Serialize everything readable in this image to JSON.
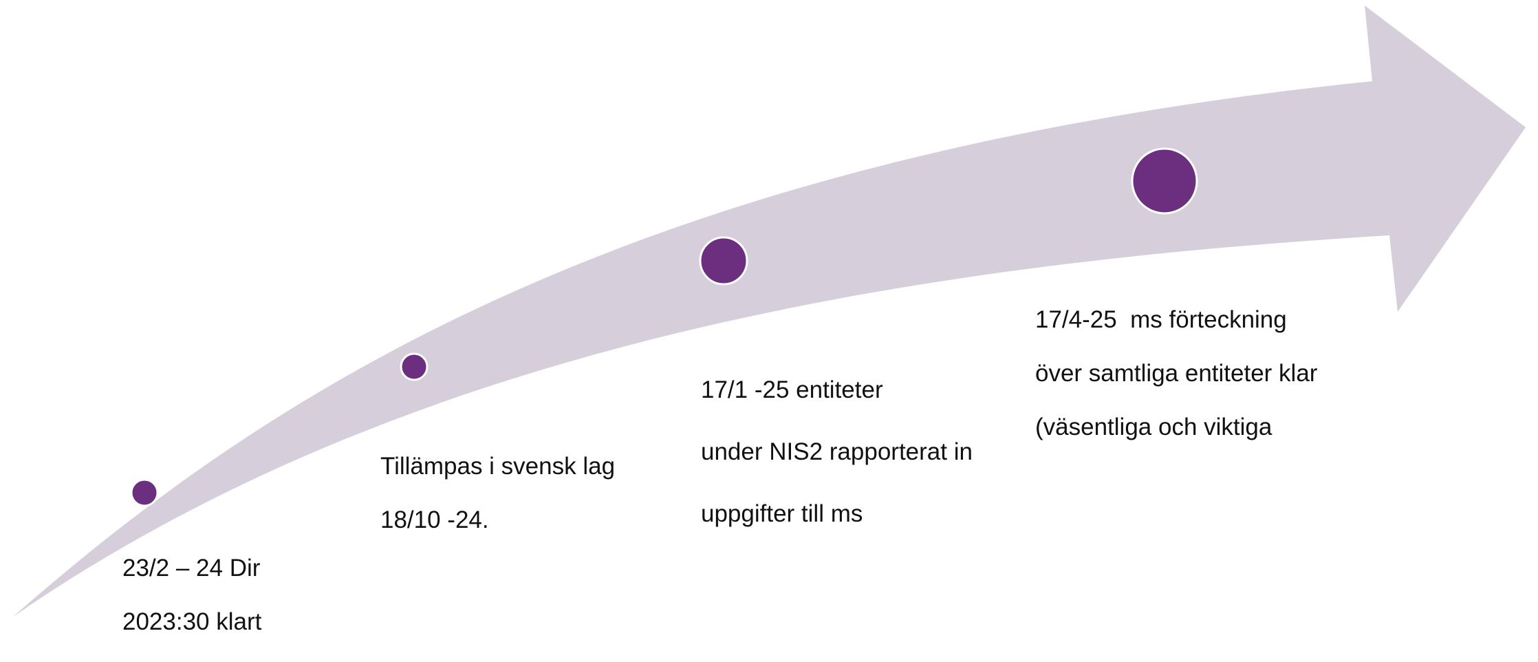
{
  "colors": {
    "arrow_fill": "#d6ceda",
    "milestone_fill": "#6c2f80",
    "milestone_stroke": "#ffffff",
    "text": "#111111"
  },
  "milestones": [
    {
      "id": "m1",
      "lines": [
        "23/2 – 24 Dir",
        "2023:30 klart"
      ]
    },
    {
      "id": "m2",
      "lines": [
        "Tillämpas i svensk lag",
        "18/10 -24."
      ]
    },
    {
      "id": "m3",
      "lines": [
        "17/1 -25 entiteter",
        "under NIS2 rapporterat in",
        "uppgifter till ms"
      ]
    },
    {
      "id": "m4",
      "lines": [
        "17/4-25  ms förteckning",
        "över samtliga entiteter klar",
        "(väsentliga och viktiga"
      ]
    }
  ]
}
